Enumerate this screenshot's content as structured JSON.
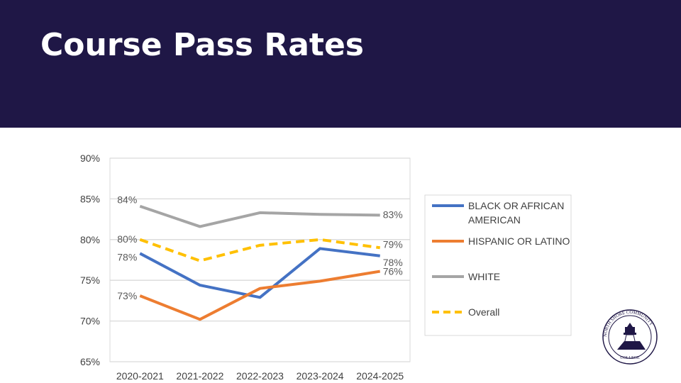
{
  "header": {
    "title": "Course Pass Rates",
    "background": "#1f1746"
  },
  "logo": {
    "text": "NORTH SHORE COMMUNITY COLLEGE EST. 1965"
  },
  "chart_data": {
    "type": "line",
    "title": "",
    "xlabel": "",
    "ylabel": "",
    "categories": [
      "2020-2021",
      "2021-2022",
      "2022-2023",
      "2023-2024",
      "2024-2025"
    ],
    "ylim": [
      65,
      90
    ],
    "yticks": [
      65,
      70,
      75,
      80,
      85,
      90
    ],
    "ytick_labels": [
      "65%",
      "70%",
      "75%",
      "80%",
      "85%",
      "90%"
    ],
    "grid": true,
    "legend": "right",
    "series": [
      {
        "name": "BLACK OR AFRICAN AMERICAN",
        "legend_lines": [
          "BLACK OR AFRICAN",
          "AMERICAN"
        ],
        "color": "#4472c4",
        "dash": false,
        "values": [
          78.3,
          74.4,
          72.9,
          78.9,
          78.0
        ],
        "labels": [
          "78%",
          "",
          "",
          "",
          "78%"
        ]
      },
      {
        "name": "HISPANIC OR LATINO",
        "legend_lines": [
          "HISPANIC OR LATINO"
        ],
        "color": "#ed7d31",
        "dash": false,
        "values": [
          73.1,
          70.2,
          74.0,
          74.9,
          76.1
        ],
        "labels": [
          "73%",
          "",
          "",
          "",
          "76%"
        ]
      },
      {
        "name": "WHITE",
        "legend_lines": [
          "WHITE"
        ],
        "color": "#a5a5a5",
        "dash": false,
        "values": [
          84.1,
          81.6,
          83.3,
          83.1,
          83.0
        ],
        "labels": [
          "84%",
          "",
          "",
          "",
          "83%"
        ]
      },
      {
        "name": "Overall",
        "legend_lines": [
          "Overall"
        ],
        "color": "#ffc000",
        "dash": true,
        "values": [
          80.0,
          77.4,
          79.3,
          80.0,
          79.0
        ],
        "labels": [
          "80%",
          "",
          "",
          "",
          "79%"
        ]
      }
    ]
  }
}
